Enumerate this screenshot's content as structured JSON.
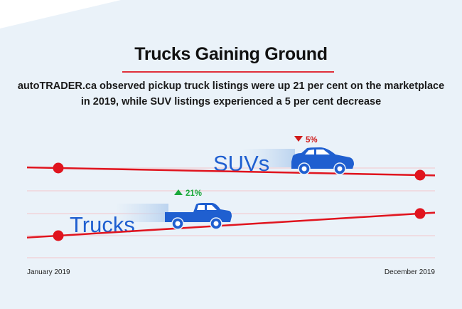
{
  "title": "Trucks Gaining Ground",
  "subtitle_line1": "autoTRADER.ca observed pickup truck listings were up 21 per cent on the marketplace",
  "subtitle_line2": "in 2019, while SUV listings experienced a 5 per cent decrease",
  "colors": {
    "line": "#e0141e",
    "vehicle": "#1f5fd0",
    "up": "#1aa83a",
    "down": "#d01a1a",
    "grid": "#f4c6cc"
  },
  "chart_data": {
    "type": "line",
    "categories": [
      "January 2019",
      "December 2019"
    ],
    "series": [
      {
        "name": "SUVs",
        "values": [
          100,
          95
        ],
        "change_label": "5%",
        "direction": "down",
        "icon": "suv-icon"
      },
      {
        "name": "Trucks",
        "values": [
          100,
          121
        ],
        "change_label": "21%",
        "direction": "up",
        "icon": "pickup-truck-icon"
      }
    ],
    "grid": true
  }
}
